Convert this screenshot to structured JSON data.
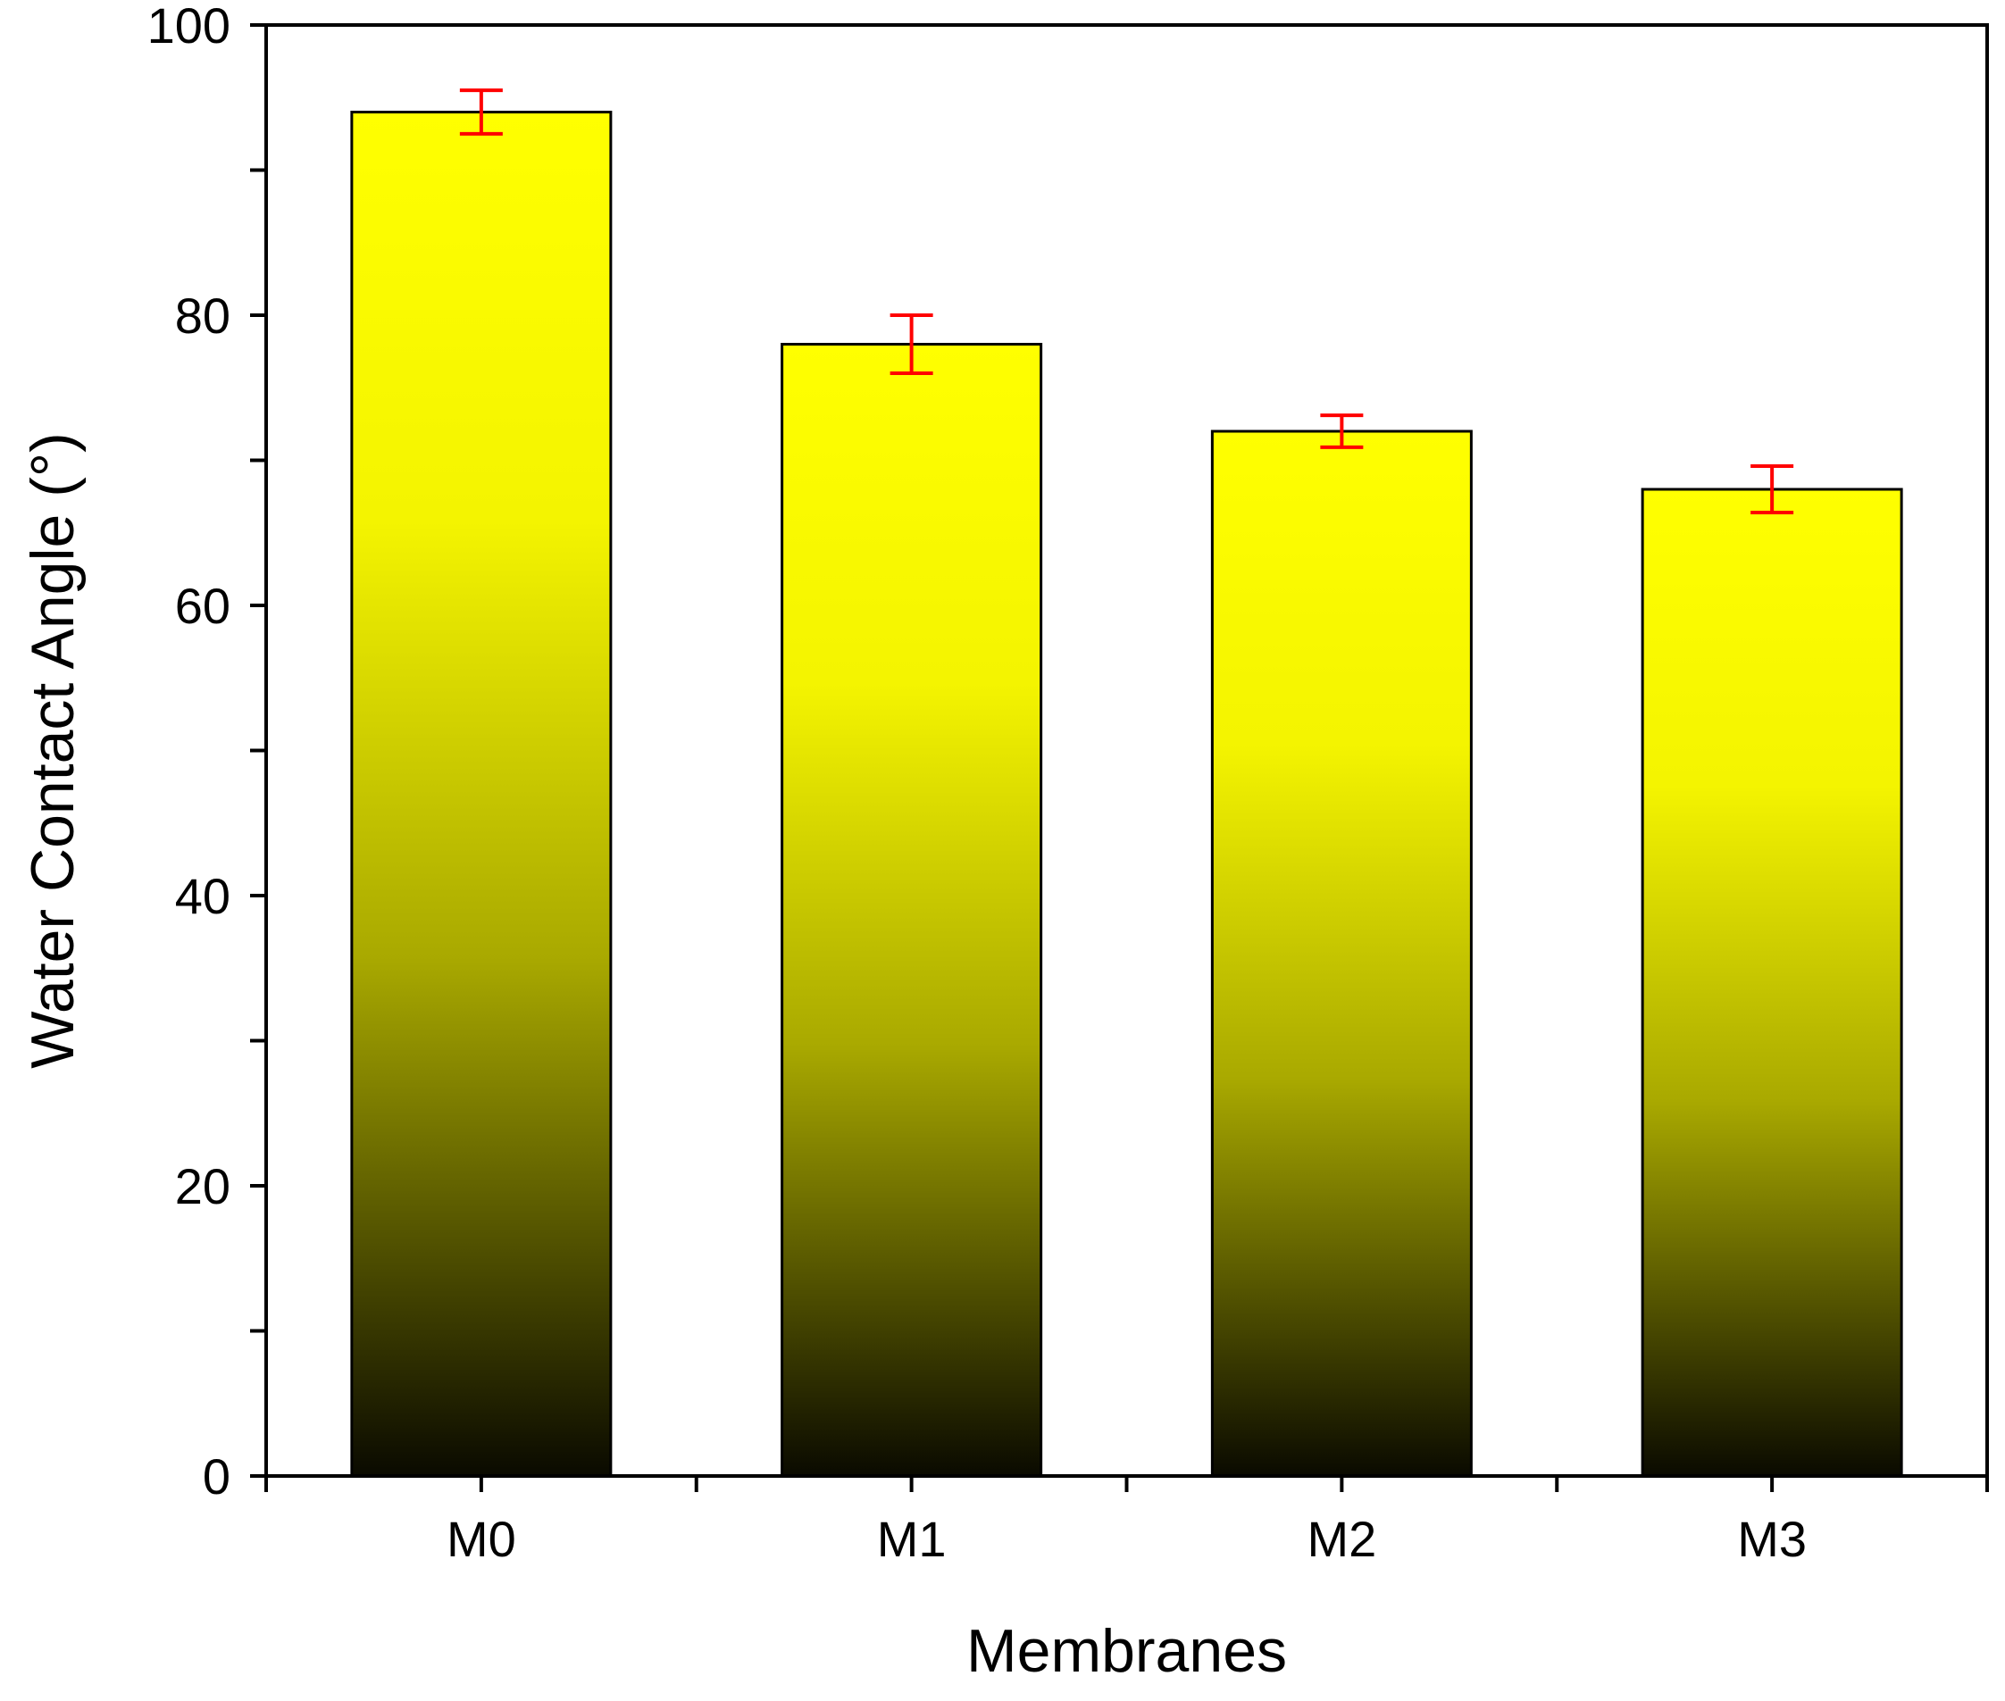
{
  "chart_data": {
    "type": "bar",
    "title": "",
    "xlabel": "Membranes",
    "ylabel": "Water Contact Angle (°)",
    "categories": [
      "M0",
      "M1",
      "M2",
      "M3"
    ],
    "values": [
      94,
      78,
      72,
      68
    ],
    "errors": [
      1.5,
      2.0,
      1.1,
      1.6
    ],
    "ylim": [
      0,
      100
    ],
    "yticks": [
      0,
      20,
      40,
      60,
      80,
      100
    ],
    "ytick_labels": [
      "0",
      "20",
      "40",
      "60",
      "80",
      "100"
    ],
    "grid": false,
    "legend": "none",
    "colors": {
      "bar_top": "#ffff00",
      "bar_bottom": "#0a0a00",
      "bar_edge": "#000000",
      "error_bar": "#ff0000",
      "axis": "#000000"
    }
  }
}
